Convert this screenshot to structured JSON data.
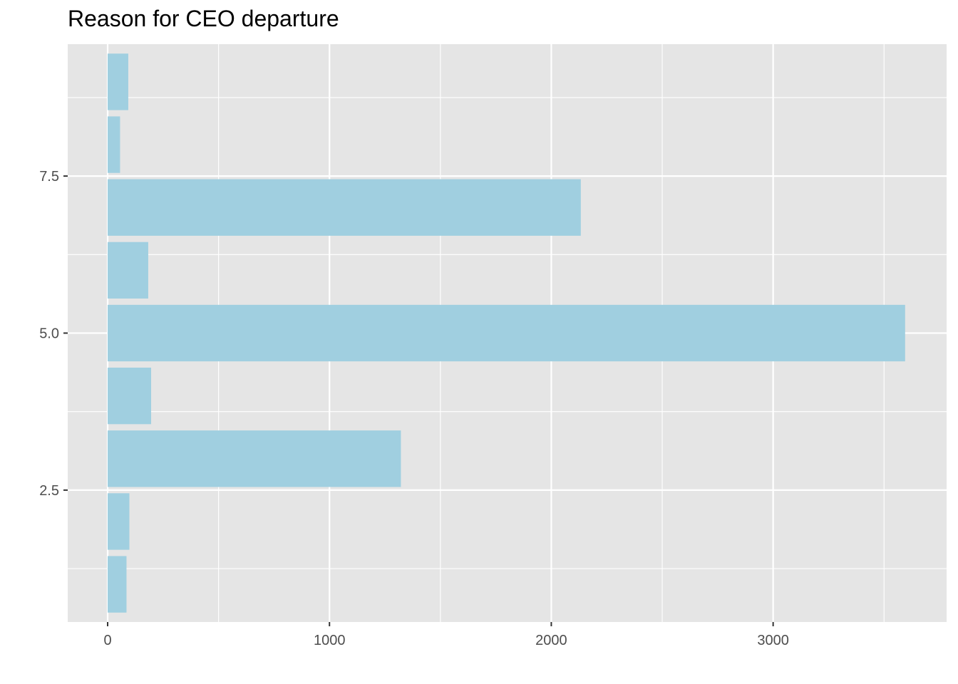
{
  "chart_data": {
    "type": "bar",
    "orientation": "horizontal",
    "title": "Reason for CEO departure",
    "xlabel": "",
    "ylabel": "",
    "y": [
      1,
      2,
      3,
      4,
      5,
      6,
      7,
      8,
      9
    ],
    "values": [
      85,
      98,
      1322,
      196,
      3595,
      183,
      2133,
      56,
      93
    ],
    "xlim": [
      -180,
      3782
    ],
    "ylim": [
      0.4,
      9.6
    ],
    "x_ticks": [
      0,
      1000,
      2000,
      3000
    ],
    "x_tick_labels": [
      "0",
      "1000",
      "2000",
      "3000"
    ],
    "y_ticks": [
      2.5,
      5.0,
      7.5
    ],
    "y_tick_labels": [
      "2.5",
      "5.0",
      "7.5"
    ],
    "grid": true,
    "legend": "none",
    "colors": {
      "bar": "#a0cfe0",
      "panel": "#e5e5e5",
      "grid": "#ffffff",
      "tick_text": "#4d4d4d",
      "tick_mark": "#333333"
    }
  }
}
